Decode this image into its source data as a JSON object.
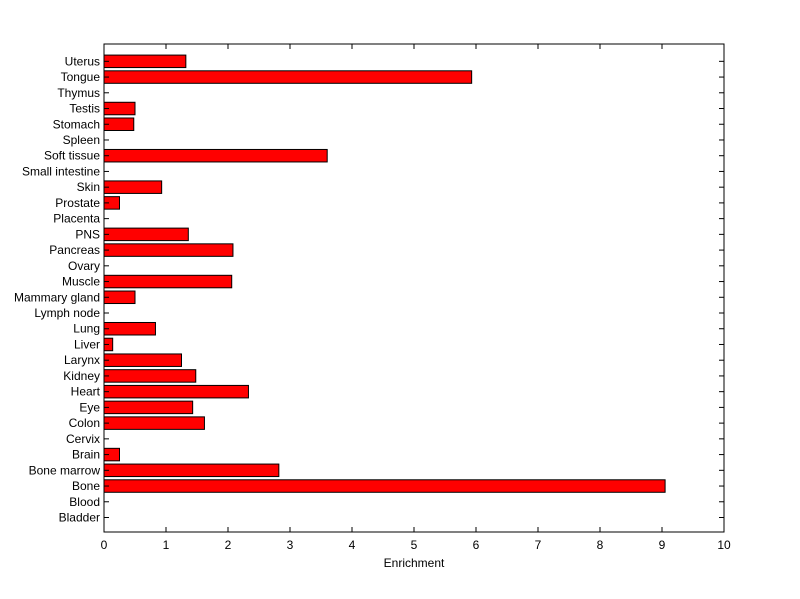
{
  "chart_data": {
    "type": "bar",
    "orientation": "horizontal",
    "title": "",
    "xlabel": "Enrichment",
    "ylabel": "",
    "xlim": [
      0,
      10
    ],
    "x_ticks": [
      0,
      1,
      2,
      3,
      4,
      5,
      6,
      7,
      8,
      9,
      10
    ],
    "grid": false,
    "legend": "none",
    "bar_color": "#ff0000",
    "bar_edge_color": "#000000",
    "categories": [
      "Bladder",
      "Blood",
      "Bone",
      "Bone marrow",
      "Brain",
      "Cervix",
      "Colon",
      "Eye",
      "Heart",
      "Kidney",
      "Larynx",
      "Liver",
      "Lung",
      "Lymph node",
      "Mammary gland",
      "Muscle",
      "Ovary",
      "Pancreas",
      "PNS",
      "Placenta",
      "Prostate",
      "Skin",
      "Small intestine",
      "Soft tissue",
      "Spleen",
      "Stomach",
      "Testis",
      "Thymus",
      "Tongue",
      "Uterus"
    ],
    "values": [
      0,
      0,
      9.05,
      2.82,
      0.25,
      0,
      1.62,
      1.43,
      2.33,
      1.48,
      1.25,
      0.14,
      0.83,
      0,
      0.5,
      2.06,
      0,
      2.08,
      1.36,
      0,
      0.25,
      0.93,
      0,
      3.6,
      0,
      0.48,
      0.5,
      0,
      5.93,
      1.32
    ]
  }
}
